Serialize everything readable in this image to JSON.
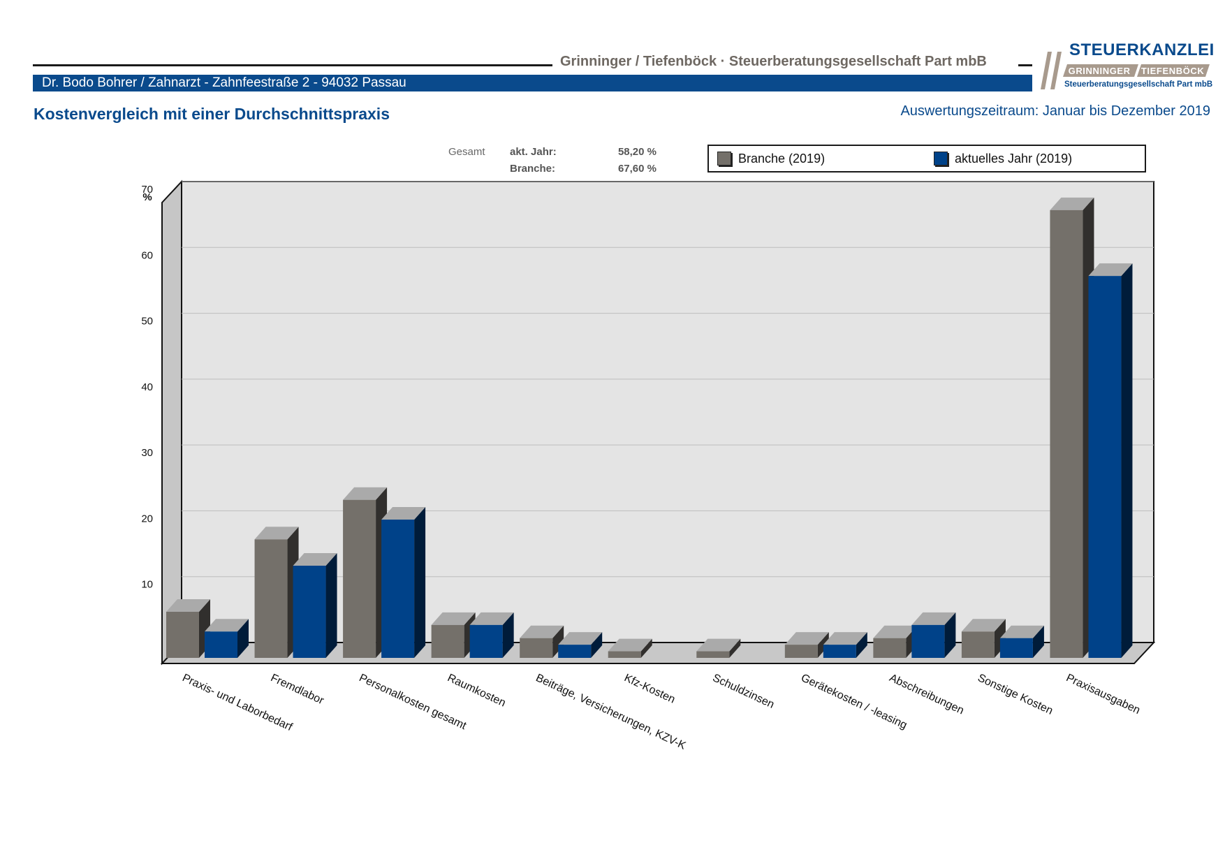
{
  "header": {
    "firm_name": "Grinninger / Tiefenböck · Steuerberatungsgesellschaft Part mbB",
    "client_info": "Dr. Bodo Bohrer / Zahnarzt  -  Zahnfeestraße 2  -  94032 Passau",
    "logo_title": "STEUERKANZLEI",
    "logo_name_left": "GRINNINGER",
    "logo_name_right": "TIEFENBÖCK",
    "logo_subtitle": "Steuerberatungsgesellschaft Part mbB"
  },
  "page_title": "Kostenvergleich mit einer Durchschnittspraxis",
  "period": "Auswertungszeitraum: Januar bis Dezember 2019",
  "summary": {
    "label": "Gesamt",
    "rows": [
      {
        "label": "akt. Jahr:",
        "value": "58,20 %"
      },
      {
        "label": "Branche:",
        "value": "67,60 %"
      }
    ]
  },
  "colors": {
    "brand_blue": "#0a4a8c",
    "branche_gray": "#74706a",
    "aktuell_blue": "#004289",
    "plot_back": "#e4e4e4",
    "logo_beige": "#a89a8d"
  },
  "chart_data": {
    "type": "bar",
    "ylabel": "%",
    "ylim": [
      0,
      70
    ],
    "yticks": [
      10,
      20,
      30,
      40,
      50,
      60,
      70
    ],
    "grid": true,
    "legend_position": "top-right",
    "categories": [
      "Praxis- und Laborbedarf",
      "Fremdlabor",
      "Personalkosten gesamt",
      "Raumkosten",
      "Beiträge, Versicherungen, KZV-K",
      "Kfz-Kosten",
      "Schuldzinsen",
      "Gerätekosten / -leasing",
      "Abschreibungen",
      "Sonstige Kosten",
      "Praxisausgaben"
    ],
    "series": [
      {
        "name": "Branche (2019)",
        "color": "#74706a",
        "values": [
          7.0,
          18.0,
          24.0,
          5.0,
          3.0,
          1.0,
          1.0,
          2.0,
          3.0,
          4.0,
          68.0
        ]
      },
      {
        "name": "aktuelles Jahr (2019)",
        "color": "#004289",
        "values": [
          4.0,
          14.0,
          21.0,
          5.0,
          2.0,
          null,
          null,
          2.0,
          5.0,
          3.0,
          58.0
        ]
      }
    ]
  }
}
